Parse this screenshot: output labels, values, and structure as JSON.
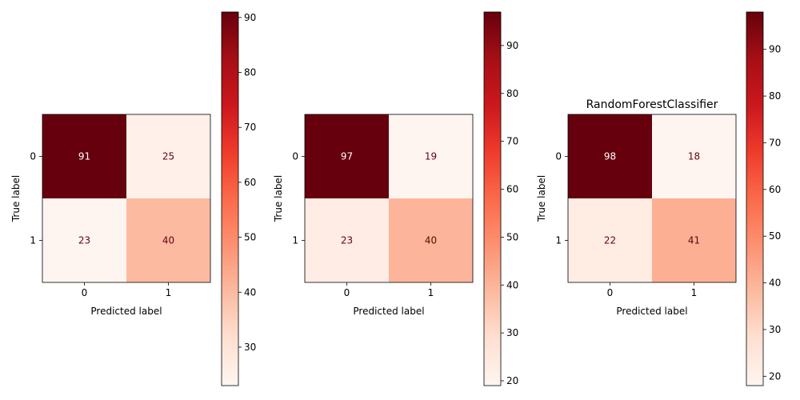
{
  "chart_data": [
    {
      "type": "heatmap",
      "title": "",
      "xlabel": "Predicted label",
      "ylabel": "True label",
      "x_categories": [
        "0",
        "1"
      ],
      "y_categories": [
        "0",
        "1"
      ],
      "values": [
        [
          91,
          25
        ],
        [
          23,
          40
        ]
      ],
      "colormap": "Reds",
      "colorbar": {
        "range": [
          23,
          91
        ],
        "ticks": [
          "30",
          "40",
          "50",
          "60",
          "70",
          "80",
          "90"
        ]
      }
    },
    {
      "type": "heatmap",
      "title": "",
      "xlabel": "Predicted label",
      "ylabel": "True label",
      "x_categories": [
        "0",
        "1"
      ],
      "y_categories": [
        "0",
        "1"
      ],
      "values": [
        [
          97,
          19
        ],
        [
          23,
          40
        ]
      ],
      "colormap": "Reds",
      "colorbar": {
        "range": [
          19,
          97
        ],
        "ticks": [
          "20",
          "30",
          "40",
          "50",
          "60",
          "70",
          "80",
          "90"
        ]
      }
    },
    {
      "type": "heatmap",
      "title": "RandomForestClassifier",
      "xlabel": "Predicted label",
      "ylabel": "True label",
      "x_categories": [
        "0",
        "1"
      ],
      "y_categories": [
        "0",
        "1"
      ],
      "values": [
        [
          98,
          18
        ],
        [
          22,
          41
        ]
      ],
      "colormap": "Reds",
      "colorbar": {
        "range": [
          18,
          98
        ],
        "ticks": [
          "20",
          "30",
          "40",
          "50",
          "60",
          "70",
          "80",
          "90"
        ]
      }
    }
  ],
  "colors": {
    "cmap_stops": [
      "#fff5f0",
      "#fee0d2",
      "#fcbba1",
      "#fc9272",
      "#fb6a4a",
      "#ef3b2c",
      "#cb181d",
      "#a50f15",
      "#67000d"
    ],
    "text_dark": "#67000d",
    "text_light": "#ffffff"
  }
}
